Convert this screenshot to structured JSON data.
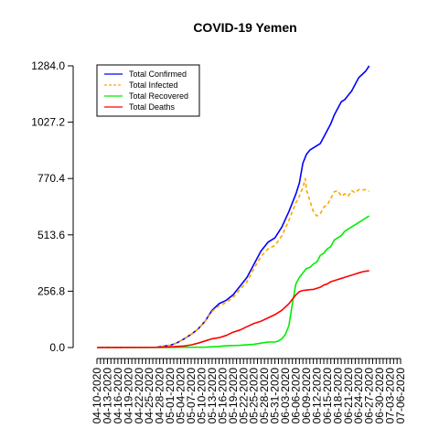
{
  "chart_data": {
    "type": "line",
    "title": "COVID-19 Yemen",
    "xlabel": "",
    "ylabel": "",
    "ylim": [
      0,
      1284
    ],
    "y_ticks": [
      "0.0",
      "256.8",
      "513.6",
      "770.4",
      "1027.2",
      "1284.0"
    ],
    "y_tick_values": [
      0,
      256.8,
      513.6,
      770.4,
      1027.2,
      1284.0
    ],
    "x_ticks": [
      "04-10-2020",
      "04-13-2020",
      "04-16-2020",
      "04-19-2020",
      "04-22-2020",
      "04-25-2020",
      "04-28-2020",
      "05-01-2020",
      "05-04-2020",
      "05-07-2020",
      "05-10-2020",
      "05-13-2020",
      "05-16-2020",
      "05-19-2020",
      "05-22-2020",
      "05-25-2020",
      "05-28-2020",
      "05-31-2020",
      "06-03-2020",
      "06-06-2020",
      "06-09-2020",
      "06-12-2020",
      "06-15-2020",
      "06-18-2020",
      "06-21-2020",
      "06-24-2020",
      "06-27-2020",
      "06-30-2020",
      "07-03-2020",
      "07-06-2020"
    ],
    "x_tick_day_index": [
      0,
      3,
      6,
      9,
      12,
      15,
      18,
      21,
      24,
      27,
      30,
      33,
      36,
      39,
      42,
      45,
      48,
      51,
      54,
      57,
      60,
      63,
      66,
      69,
      72,
      75,
      78,
      81,
      84,
      87
    ],
    "num_days": 88,
    "grid": false,
    "legend_position": "top-left",
    "series": [
      {
        "name": "Total Confirmed",
        "color": "#0000ff",
        "dash": "solid",
        "points": [
          [
            0,
            1
          ],
          [
            17,
            1
          ],
          [
            19,
            6
          ],
          [
            21,
            10
          ],
          [
            23,
            22
          ],
          [
            25,
            40
          ],
          [
            27,
            60
          ],
          [
            29,
            85
          ],
          [
            31,
            120
          ],
          [
            33,
            170
          ],
          [
            35,
            200
          ],
          [
            37,
            215
          ],
          [
            39,
            240
          ],
          [
            41,
            280
          ],
          [
            43,
            320
          ],
          [
            45,
            380
          ],
          [
            47,
            440
          ],
          [
            49,
            480
          ],
          [
            51,
            500
          ],
          [
            53,
            550
          ],
          [
            55,
            620
          ],
          [
            57,
            700
          ],
          [
            58,
            750
          ],
          [
            59,
            840
          ],
          [
            60,
            880
          ],
          [
            61,
            900
          ],
          [
            62,
            910
          ],
          [
            63,
            920
          ],
          [
            64,
            930
          ],
          [
            65,
            960
          ],
          [
            66,
            990
          ],
          [
            67,
            1020
          ],
          [
            68,
            1060
          ],
          [
            69,
            1090
          ],
          [
            70,
            1120
          ],
          [
            71,
            1130
          ],
          [
            72,
            1150
          ],
          [
            73,
            1170
          ],
          [
            74,
            1200
          ],
          [
            75,
            1230
          ],
          [
            76,
            1245
          ],
          [
            77,
            1260
          ],
          [
            78,
            1284
          ]
        ]
      },
      {
        "name": "Total Infected",
        "color": "#ffa500",
        "dash": "dashed",
        "points": [
          [
            0,
            1
          ],
          [
            17,
            1
          ],
          [
            19,
            6
          ],
          [
            21,
            10
          ],
          [
            23,
            22
          ],
          [
            25,
            40
          ],
          [
            27,
            60
          ],
          [
            29,
            85
          ],
          [
            31,
            120
          ],
          [
            33,
            165
          ],
          [
            35,
            190
          ],
          [
            37,
            205
          ],
          [
            39,
            228
          ],
          [
            41,
            265
          ],
          [
            43,
            300
          ],
          [
            45,
            360
          ],
          [
            47,
            415
          ],
          [
            49,
            450
          ],
          [
            51,
            465
          ],
          [
            53,
            510
          ],
          [
            55,
            580
          ],
          [
            57,
            660
          ],
          [
            58,
            690
          ],
          [
            59,
            730
          ],
          [
            59.7,
            770
          ],
          [
            60,
            720
          ],
          [
            61,
            670
          ],
          [
            62,
            620
          ],
          [
            63,
            600
          ],
          [
            64,
            610
          ],
          [
            65,
            640
          ],
          [
            66,
            650
          ],
          [
            67,
            680
          ],
          [
            68,
            710
          ],
          [
            69,
            715
          ],
          [
            70,
            690
          ],
          [
            71,
            700
          ],
          [
            72,
            690
          ],
          [
            73,
            715
          ],
          [
            74,
            705
          ],
          [
            75,
            720
          ],
          [
            76,
            718
          ],
          [
            77,
            720
          ],
          [
            78,
            712
          ]
        ]
      },
      {
        "name": "Total Recovered",
        "color": "#00ee00",
        "dash": "solid",
        "points": [
          [
            0,
            0
          ],
          [
            19,
            0
          ],
          [
            25,
            1
          ],
          [
            31,
            2
          ],
          [
            35,
            5
          ],
          [
            37,
            8
          ],
          [
            41,
            10
          ],
          [
            45,
            15
          ],
          [
            47,
            20
          ],
          [
            49,
            25
          ],
          [
            51,
            25
          ],
          [
            52,
            30
          ],
          [
            53,
            40
          ],
          [
            54,
            60
          ],
          [
            55,
            100
          ],
          [
            56,
            200
          ],
          [
            57,
            290
          ],
          [
            58,
            320
          ],
          [
            59,
            340
          ],
          [
            60,
            360
          ],
          [
            61,
            365
          ],
          [
            62,
            380
          ],
          [
            63,
            390
          ],
          [
            64,
            420
          ],
          [
            65,
            430
          ],
          [
            66,
            450
          ],
          [
            67,
            460
          ],
          [
            68,
            490
          ],
          [
            69,
            500
          ],
          [
            70,
            510
          ],
          [
            71,
            530
          ],
          [
            72,
            540
          ],
          [
            73,
            550
          ],
          [
            74,
            560
          ],
          [
            75,
            570
          ],
          [
            76,
            580
          ],
          [
            77,
            590
          ],
          [
            78,
            600
          ]
        ]
      },
      {
        "name": "Total Deaths",
        "color": "#ff0000",
        "dash": "solid",
        "points": [
          [
            0,
            0
          ],
          [
            17,
            1
          ],
          [
            19,
            2
          ],
          [
            21,
            3
          ],
          [
            23,
            5
          ],
          [
            25,
            7
          ],
          [
            27,
            12
          ],
          [
            29,
            20
          ],
          [
            31,
            30
          ],
          [
            33,
            40
          ],
          [
            35,
            45
          ],
          [
            37,
            55
          ],
          [
            39,
            70
          ],
          [
            41,
            80
          ],
          [
            43,
            95
          ],
          [
            45,
            110
          ],
          [
            47,
            120
          ],
          [
            49,
            135
          ],
          [
            51,
            150
          ],
          [
            53,
            170
          ],
          [
            55,
            200
          ],
          [
            57,
            240
          ],
          [
            58,
            255
          ],
          [
            59,
            260
          ],
          [
            60,
            262
          ],
          [
            61,
            264
          ],
          [
            62,
            265
          ],
          [
            63,
            270
          ],
          [
            64,
            275
          ],
          [
            65,
            285
          ],
          [
            66,
            290
          ],
          [
            67,
            300
          ],
          [
            68,
            305
          ],
          [
            69,
            310
          ],
          [
            70,
            315
          ],
          [
            71,
            320
          ],
          [
            72,
            325
          ],
          [
            73,
            330
          ],
          [
            74,
            335
          ],
          [
            75,
            340
          ],
          [
            76,
            345
          ],
          [
            77,
            348
          ],
          [
            78,
            350
          ]
        ]
      }
    ]
  }
}
